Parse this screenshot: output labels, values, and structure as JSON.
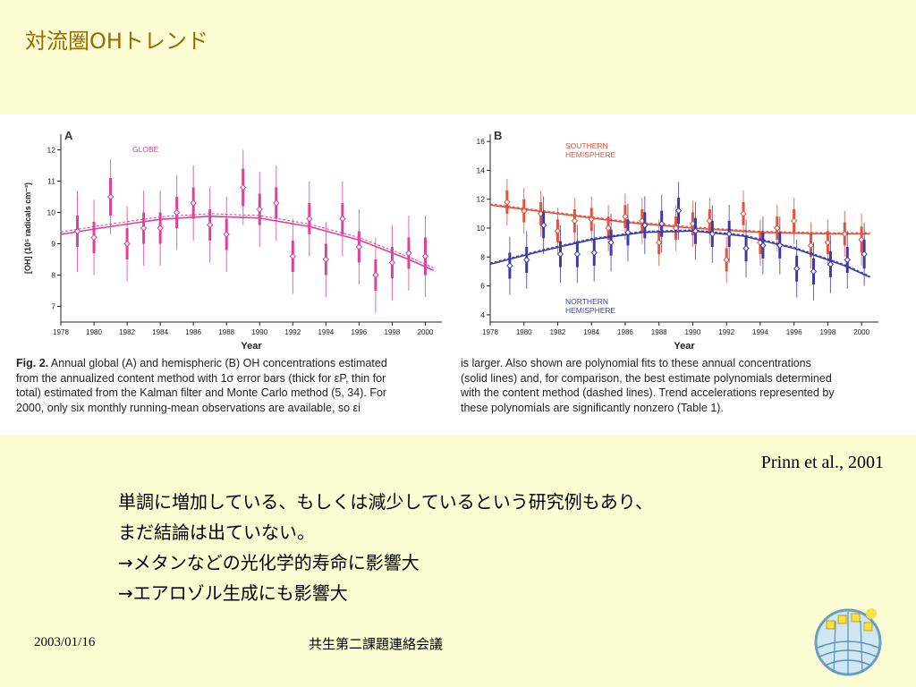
{
  "slide": {
    "title": "対流圏OHトレンド",
    "citation": "Prinn et al., 2001",
    "body_lines": [
      "単調に増加している、もしくは減少しているという研究例もあり、",
      "まだ結論は出ていない。",
      "→メタンなどの光化学的寿命に影響大",
      "→エアロゾル生成にも影響大"
    ],
    "footer_date": "2003/01/16",
    "footer_center": "共生第二課題連絡会議"
  },
  "caption": {
    "left_bold": "Fig. 2.",
    "left_rest": [
      " Annual global (A) and hemispheric (B) OH concentrations estimated",
      "from the annualized content method with 1σ error bars (thick for εP, thin for",
      "total) estimated from the Kalman filter and Monte Carlo method (5, 34). For",
      "2000, only six monthly running-mean observations are available, so εi"
    ],
    "right": [
      "is larger. Also shown are polynomial fits to these annual concentrations",
      "(solid lines) and, for comparison, the best estimate polynomials determined",
      "with the content method (dashed lines). Trend accelerations represented by",
      "these polynomials are significantly nonzero (Table 1)."
    ]
  },
  "colors": {
    "globe": "#e0409a",
    "southern": "#e8503a",
    "northern": "#3a3aa8",
    "title": "#9a6a00"
  },
  "chart_data": [
    {
      "type": "scatter",
      "panel_label": "A",
      "ylabel": "[OH] (10⁵ radicals cm⁻³)",
      "xlabel": "Year",
      "xlim": [
        1978,
        2001
      ],
      "ylim": [
        6.5,
        12.5
      ],
      "xticks": [
        1978,
        1980,
        1982,
        1984,
        1986,
        1988,
        1990,
        1992,
        1994,
        1996,
        1998,
        2000
      ],
      "yticks": [
        7,
        8,
        9,
        10,
        11,
        12
      ],
      "series": [
        {
          "name": "GLOBE",
          "color": "#e0409a",
          "x": [
            1979,
            1980,
            1981,
            1982,
            1983,
            1984,
            1985,
            1986,
            1987,
            1988,
            1989,
            1990,
            1991,
            1992,
            1993,
            1994,
            1995,
            1996,
            1997,
            1998,
            1999,
            2000
          ],
          "y": [
            9.4,
            9.2,
            10.5,
            9.0,
            9.5,
            9.5,
            10.0,
            10.3,
            9.6,
            9.3,
            10.8,
            10.1,
            10.3,
            8.6,
            9.8,
            8.5,
            9.8,
            8.9,
            8.0,
            8.4,
            8.7,
            8.6
          ],
          "err_thick": [
            0.5,
            0.5,
            0.6,
            0.5,
            0.5,
            0.5,
            0.5,
            0.5,
            0.5,
            0.5,
            0.6,
            0.5,
            0.5,
            0.5,
            0.5,
            0.5,
            0.5,
            0.5,
            0.5,
            0.5,
            0.5,
            0.6
          ],
          "err_thin": [
            1.3,
            1.2,
            1.2,
            1.2,
            1.2,
            1.2,
            1.2,
            1.2,
            1.2,
            1.2,
            1.2,
            1.2,
            1.2,
            1.2,
            1.2,
            1.2,
            1.2,
            1.2,
            1.2,
            1.2,
            1.2,
            1.3
          ],
          "fit": {
            "x": [
              1978,
              1981,
              1984,
              1987,
              1990,
              1993,
              1996,
              1999,
              2000.5
            ],
            "y": [
              9.3,
              9.55,
              9.78,
              9.88,
              9.82,
              9.55,
              9.12,
              8.5,
              8.15
            ]
          }
        }
      ]
    },
    {
      "type": "scatter",
      "panel_label": "B",
      "xlabel": "Year",
      "xlim": [
        1978,
        2001
      ],
      "ylim": [
        3.5,
        16.5
      ],
      "xticks": [
        1978,
        1980,
        1982,
        1984,
        1986,
        1988,
        1990,
        1992,
        1994,
        1996,
        1998,
        2000
      ],
      "yticks": [
        4,
        6,
        8,
        10,
        12,
        14,
        16
      ],
      "series": [
        {
          "name": "SOUTHERN HEMISPHERE",
          "color": "#e8503a",
          "x": [
            1979,
            1980,
            1981,
            1982,
            1983,
            1984,
            1985,
            1986,
            1987,
            1988,
            1989,
            1990,
            1991,
            1992,
            1993,
            1994,
            1995,
            1996,
            1997,
            1998,
            1999,
            2000
          ],
          "y": [
            11.8,
            11.2,
            11.0,
            9.8,
            10.5,
            10.6,
            10.0,
            10.8,
            10.5,
            9.0,
            10.0,
            10.3,
            10.5,
            7.8,
            11.0,
            9.0,
            10.0,
            10.5,
            8.8,
            9.0,
            9.6,
            9.2
          ],
          "err_thick": [
            0.8,
            0.8,
            0.8,
            0.8,
            0.8,
            0.8,
            0.8,
            0.8,
            0.8,
            0.8,
            0.8,
            0.8,
            0.8,
            0.8,
            0.8,
            0.8,
            0.8,
            0.8,
            0.8,
            0.8,
            0.8,
            0.9
          ],
          "err_thin": [
            1.6,
            1.6,
            1.6,
            1.6,
            1.6,
            1.6,
            1.6,
            1.6,
            1.6,
            1.6,
            1.6,
            1.6,
            1.6,
            1.6,
            1.6,
            1.6,
            1.6,
            1.6,
            1.6,
            1.6,
            1.6,
            1.8
          ],
          "fit": {
            "x": [
              1978,
              1982,
              1986,
              1990,
              1994,
              1998,
              2000.5
            ],
            "y": [
              11.6,
              11.0,
              10.4,
              10.0,
              9.7,
              9.6,
              9.6
            ]
          }
        },
        {
          "name": "NORTHERN HEMISPHERE",
          "color": "#3a3aa8",
          "x": [
            1979,
            1980,
            1981,
            1982,
            1983,
            1984,
            1985,
            1986,
            1987,
            1988,
            1989,
            1990,
            1991,
            1992,
            1993,
            1994,
            1995,
            1996,
            1997,
            1998,
            1999,
            2000
          ],
          "y": [
            7.4,
            7.8,
            10.2,
            8.2,
            8.2,
            8.3,
            9.0,
            9.7,
            10.2,
            10.3,
            11.2,
            9.8,
            9.6,
            9.6,
            8.6,
            8.8,
            8.8,
            7.2,
            7.0,
            7.5,
            7.8,
            8.2
          ],
          "err_thick": [
            0.9,
            0.9,
            0.9,
            0.9,
            0.9,
            0.9,
            0.9,
            0.9,
            0.9,
            0.9,
            0.9,
            0.9,
            0.9,
            0.9,
            0.9,
            0.9,
            0.9,
            0.9,
            0.9,
            0.9,
            0.9,
            1.0
          ],
          "err_thin": [
            2.0,
            2.0,
            2.0,
            2.0,
            2.0,
            2.0,
            2.0,
            2.0,
            2.0,
            2.0,
            2.0,
            2.0,
            2.0,
            2.0,
            2.0,
            2.0,
            2.0,
            2.0,
            2.0,
            2.0,
            2.0,
            2.2
          ],
          "fit": {
            "x": [
              1978,
              1981,
              1984,
              1987,
              1990,
              1993,
              1996,
              1999,
              2000.5
            ],
            "y": [
              7.5,
              8.4,
              9.2,
              9.7,
              9.8,
              9.45,
              8.6,
              7.4,
              6.6
            ]
          }
        }
      ]
    }
  ]
}
